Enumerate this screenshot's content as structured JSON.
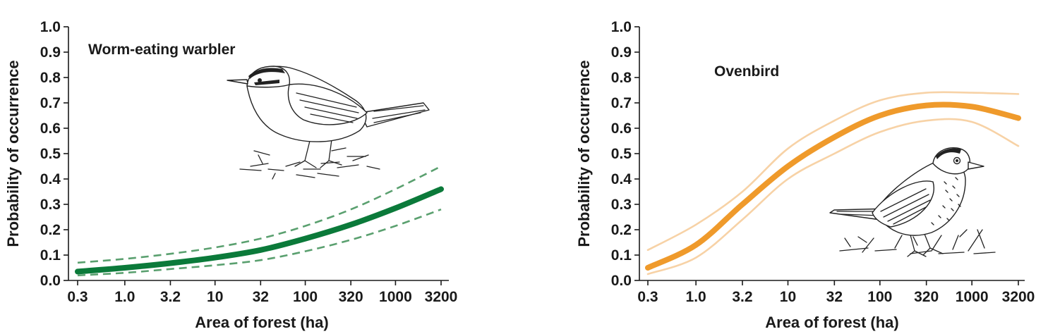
{
  "chart_data": [
    {
      "type": "line",
      "title": "Worm-eating warbler",
      "xlabel": "Area of forest (ha)",
      "ylabel": "Probability of occurrence",
      "x_scale": "log",
      "x_ticks": [
        "0.3",
        "1.0",
        "3.2",
        "10",
        "32",
        "100",
        "320",
        "1000",
        "3200"
      ],
      "x_tick_values": [
        0.3,
        1.0,
        3.2,
        10,
        32,
        100,
        320,
        1000,
        3200
      ],
      "y_ticks": [
        "0.0",
        "0.1",
        "0.2",
        "0.3",
        "0.4",
        "0.5",
        "0.6",
        "0.7",
        "0.8",
        "0.9",
        "1.0"
      ],
      "ylim": [
        0,
        1.0
      ],
      "xlim": [
        0.3,
        3200
      ],
      "grid": false,
      "series": [
        {
          "role": "estimate",
          "style": "solid-thick",
          "color": "#0b7a3a",
          "x": [
            0.3,
            1.0,
            3.2,
            10,
            32,
            100,
            320,
            1000,
            3200
          ],
          "y": [
            0.035,
            0.05,
            0.068,
            0.09,
            0.12,
            0.165,
            0.22,
            0.285,
            0.36
          ]
        },
        {
          "role": "upper bound",
          "style": "dashed",
          "color": "#5aa06f",
          "x": [
            0.3,
            1.0,
            3.2,
            10,
            32,
            100,
            320,
            1000,
            3200
          ],
          "y": [
            0.07,
            0.085,
            0.105,
            0.13,
            0.165,
            0.215,
            0.28,
            0.36,
            0.45
          ]
        },
        {
          "role": "lower bound",
          "style": "dashed",
          "color": "#5aa06f",
          "x": [
            0.3,
            1.0,
            3.2,
            10,
            32,
            100,
            320,
            1000,
            3200
          ],
          "y": [
            0.02,
            0.03,
            0.045,
            0.06,
            0.08,
            0.115,
            0.16,
            0.215,
            0.28
          ]
        }
      ]
    },
    {
      "type": "line",
      "title": "Ovenbird",
      "xlabel": "Area of forest (ha)",
      "ylabel": "Probability of occurrence",
      "x_scale": "log",
      "x_ticks": [
        "0.3",
        "1.0",
        "3.2",
        "10",
        "32",
        "100",
        "320",
        "1000",
        "3200"
      ],
      "x_tick_values": [
        0.3,
        1.0,
        3.2,
        10,
        32,
        100,
        320,
        1000,
        3200
      ],
      "y_ticks": [
        "0.0",
        "0.1",
        "0.2",
        "0.3",
        "0.4",
        "0.5",
        "0.6",
        "0.7",
        "0.8",
        "0.9",
        "1.0"
      ],
      "ylim": [
        0,
        1.0
      ],
      "xlim": [
        0.3,
        3200
      ],
      "grid": false,
      "series": [
        {
          "role": "estimate",
          "style": "solid-thick",
          "color": "#ef9a2b",
          "x": [
            0.3,
            1.0,
            3.2,
            10,
            32,
            100,
            320,
            1000,
            3200
          ],
          "y": [
            0.05,
            0.14,
            0.3,
            0.45,
            0.565,
            0.65,
            0.69,
            0.685,
            0.64
          ]
        },
        {
          "role": "upper bound",
          "style": "thin",
          "color": "#f7d2a6",
          "x": [
            0.3,
            1.0,
            3.2,
            10,
            32,
            100,
            320,
            1000,
            3200
          ],
          "y": [
            0.12,
            0.22,
            0.35,
            0.52,
            0.63,
            0.71,
            0.74,
            0.74,
            0.735
          ]
        },
        {
          "role": "lower bound",
          "style": "thin",
          "color": "#f7d2a6",
          "x": [
            0.3,
            1.0,
            3.2,
            10,
            32,
            100,
            320,
            1000,
            3200
          ],
          "y": [
            0.025,
            0.09,
            0.24,
            0.4,
            0.5,
            0.585,
            0.63,
            0.625,
            0.53
          ]
        }
      ]
    }
  ]
}
